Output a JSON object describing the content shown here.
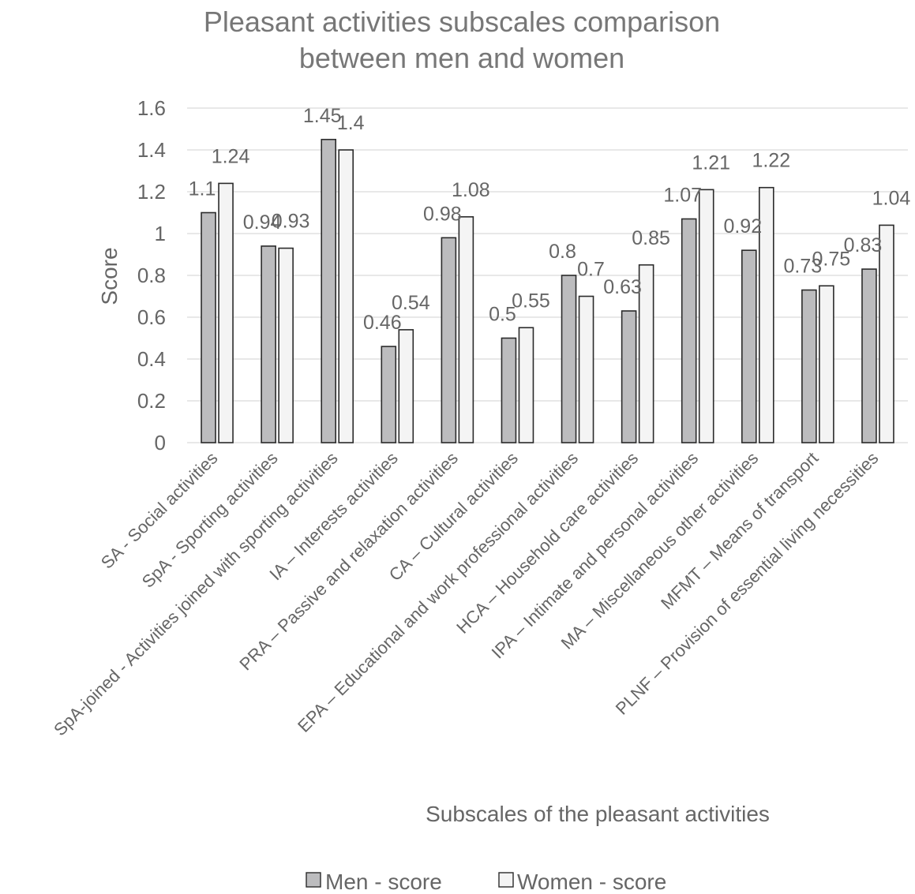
{
  "chart_data": {
    "type": "bar",
    "title": "Pleasant activities subscales comparison",
    "subtitle": "between men and women",
    "xlabel": "Subscales of the pleasant activities",
    "ylabel": "Score",
    "ylim": [
      0,
      1.6
    ],
    "yticks": [
      "0",
      "0.2",
      "0.4",
      "0.6",
      "0.8",
      "1",
      "1.2",
      "1.4",
      "1.6"
    ],
    "grid": true,
    "legend_position": "bottom",
    "categories": [
      "SA - Social activities",
      "SpA - Sporting activities",
      "SpA-joined - Activities joined with sporting activities",
      "IA – Interests activities",
      "PRA – Passive and relaxation activities",
      "CA – Cultural activities",
      "EPA – Educational and work professional activities",
      "HCA – Household care activities",
      "IPA – Intimate and personal activities",
      "MA – Miscellaneous other activities",
      "MFMT – Means of transport",
      "PLNF – Provision of essential living necessities"
    ],
    "series": [
      {
        "name": "Men - score",
        "color": "#bcbcbe",
        "values": [
          1.1,
          0.94,
          1.45,
          0.46,
          0.98,
          0.5,
          0.8,
          0.63,
          1.07,
          0.92,
          0.73,
          0.83
        ],
        "labels": [
          "1.1",
          "0.94",
          "1.45",
          "0.46",
          "0.98",
          "0.5",
          "0.8",
          "0.63",
          "1.07",
          "0.92",
          "0.73",
          "0.83"
        ]
      },
      {
        "name": "Women - score",
        "color": "#f4f4f4",
        "values": [
          1.24,
          0.93,
          1.4,
          0.54,
          1.08,
          0.55,
          0.7,
          0.85,
          1.21,
          1.22,
          0.75,
          1.04
        ],
        "labels": [
          "1.24",
          "0.93",
          "1.4",
          "0.54",
          "1.08",
          "0.55",
          "0.7",
          "0.85",
          "1.21",
          "1.22",
          "0.75",
          "1.04"
        ]
      }
    ]
  }
}
